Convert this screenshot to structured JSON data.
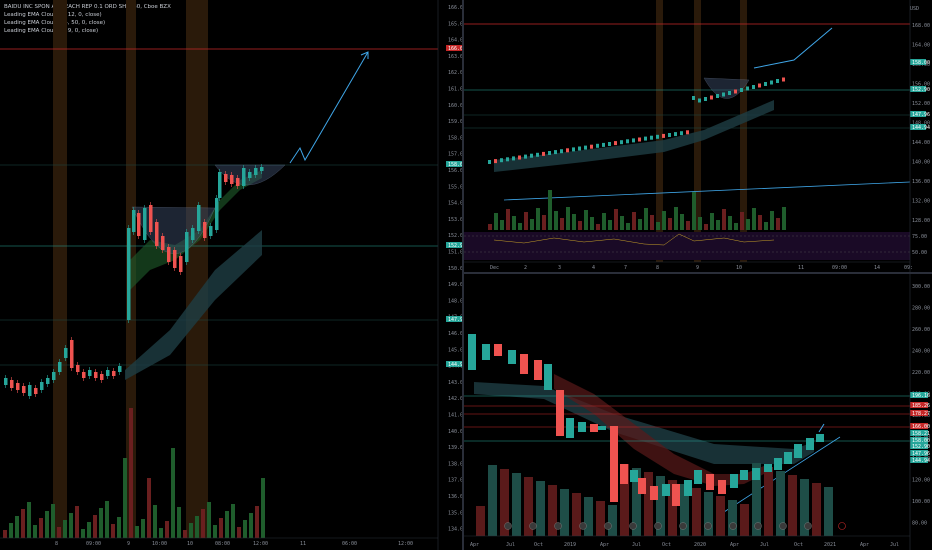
{
  "colors": {
    "background": "#000000",
    "up": "#26a69a",
    "down": "#ef5350",
    "red_line": "#c62828",
    "teal_line": "#26a69a",
    "blue_arrow": "#3fa6e8",
    "session_band": "#3a2410"
  },
  "left_panel": {
    "legend": [
      "BAIDU INC SPON ADS EACH REP 0.1 ORD SHS, 30, Cboe BZX",
      "Leading EMA Cloud (5, 12, 0, close)",
      "Leading EMA Cloud (34, 50, 0, close)",
      "Leading EMA Cloud (8, 9, 0, close)"
    ],
    "price_ticks": [
      "166.00",
      "165.00",
      "164.00",
      "163.00",
      "162.00",
      "161.00",
      "160.00",
      "159.00",
      "158.00",
      "157.00",
      "156.00",
      "155.00",
      "154.00",
      "153.00",
      "152.00",
      "151.00",
      "150.00",
      "149.00",
      "148.00",
      "147.00",
      "146.00",
      "145.00",
      "144.00",
      "143.00",
      "142.00",
      "141.00",
      "140.00",
      "139.00",
      "138.00",
      "137.00",
      "136.00",
      "135.00",
      "134.00"
    ],
    "price_tags": [
      {
        "label": "166.00",
        "color": "#c62828"
      },
      {
        "label": "158.00",
        "color": "#26a69a"
      },
      {
        "label": "152.90",
        "color": "#26a69a"
      },
      {
        "label": "147.96",
        "color": "#26a69a"
      },
      {
        "label": "144.94",
        "color": "#26a69a"
      }
    ],
    "time_ticks": [
      "8",
      "09:00",
      "9",
      "10:00",
      "10",
      "08:00",
      "12:00",
      "11",
      "06:00",
      "12:00"
    ]
  },
  "top_right_panel": {
    "currency": "USD",
    "price_ticks": [
      "168.00",
      "164.00",
      "160.00",
      "156.00",
      "152.00",
      "148.00",
      "144.00",
      "140.00",
      "136.00",
      "132.00",
      "128.00"
    ],
    "price_tags": [
      {
        "label": "158.00",
        "color": "#26a69a"
      },
      {
        "label": "152.90",
        "color": "#26a69a"
      },
      {
        "label": "147.96",
        "color": "#26a69a"
      },
      {
        "label": "144.94",
        "color": "#26a69a"
      }
    ],
    "osc_ticks": [
      "75.00",
      "50.00"
    ],
    "time_ticks": [
      "Dec",
      "2",
      "3",
      "4",
      "7",
      "8",
      "9",
      "10",
      "11",
      "09:00",
      "14",
      "09:"
    ]
  },
  "bottom_right_panel": {
    "price_ticks": [
      "300.00",
      "280.00",
      "260.00",
      "240.00",
      "220.00",
      "200.00",
      "180.00",
      "160.00",
      "140.00",
      "120.00",
      "100.00",
      "80.00"
    ],
    "price_tags": [
      {
        "label": "196.16",
        "color": "#26a69a"
      },
      {
        "label": "185.26",
        "color": "#c62828"
      },
      {
        "label": "178.27",
        "color": "#c62828"
      },
      {
        "label": "166.00",
        "color": "#c62828"
      },
      {
        "label": "158.21",
        "color": "#26a69a"
      },
      {
        "label": "158.00",
        "color": "#26a69a"
      },
      {
        "label": "152.90",
        "color": "#26a69a"
      },
      {
        "label": "147.96",
        "color": "#26a69a"
      },
      {
        "label": "144.94",
        "color": "#26a69a"
      }
    ],
    "time_ticks": [
      "Apr",
      "Jul",
      "Oct",
      "2019",
      "Apr",
      "Jul",
      "Oct",
      "2020",
      "Apr",
      "Jul",
      "Oct",
      "2021",
      "Apr",
      "Jul"
    ]
  }
}
